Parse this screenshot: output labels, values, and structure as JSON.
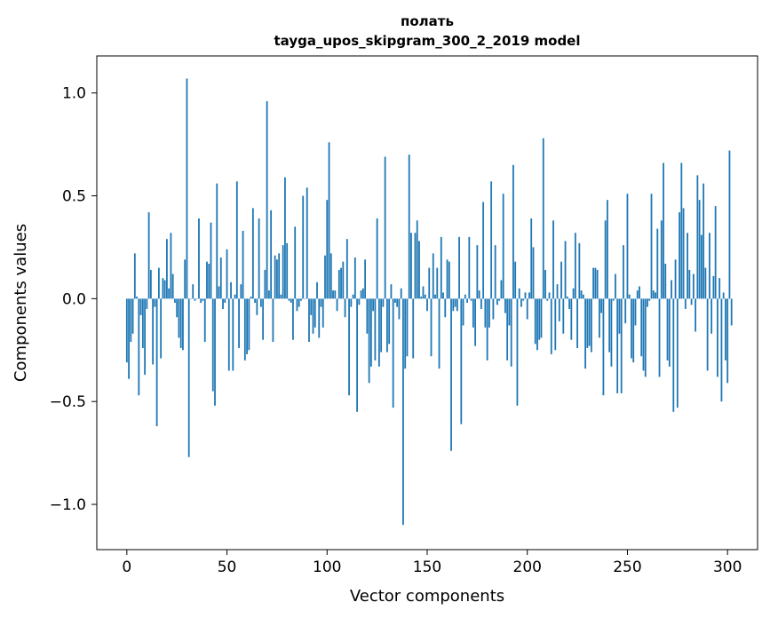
{
  "chart_data": {
    "type": "bar",
    "title_line1": "полать",
    "title_line2": "tayga_upos_skipgram_300_2_2019 model",
    "xlabel": "Vector components",
    "ylabel": "Components values",
    "xlim": [
      -15,
      315
    ],
    "ylim": [
      -1.22,
      1.18
    ],
    "x_ticks": [
      0,
      50,
      100,
      150,
      200,
      250,
      300
    ],
    "x_tick_labels": [
      "0",
      "50",
      "100",
      "150",
      "200",
      "250",
      "300"
    ],
    "y_ticks": [
      -1.0,
      -0.5,
      0.0,
      0.5,
      1.0
    ],
    "y_tick_labels": [
      "−1.0",
      "−0.5",
      "0.0",
      "0.5",
      "1.0"
    ],
    "bar_color": "#1f77b4",
    "series": [
      {
        "name": "полать",
        "values": [
          -0.31,
          -0.39,
          -0.21,
          -0.17,
          0.22,
          0.01,
          -0.47,
          -0.08,
          -0.24,
          -0.37,
          -0.05,
          0.42,
          0.14,
          -0.32,
          -0.04,
          -0.62,
          0.15,
          -0.29,
          0.1,
          0.09,
          0.29,
          0.05,
          0.32,
          0.12,
          -0.02,
          -0.09,
          -0.19,
          -0.24,
          -0.25,
          0.19,
          1.07,
          -0.77,
          0.0,
          0.07,
          -0.01,
          0.0,
          0.39,
          -0.02,
          -0.01,
          -0.21,
          0.18,
          0.17,
          0.37,
          -0.45,
          -0.52,
          0.56,
          0.06,
          0.2,
          -0.05,
          -0.02,
          0.24,
          -0.35,
          0.08,
          -0.35,
          0.02,
          0.57,
          -0.24,
          0.07,
          0.33,
          -0.3,
          -0.27,
          -0.25,
          0.01,
          0.44,
          -0.02,
          -0.08,
          0.39,
          -0.04,
          -0.2,
          0.14,
          0.96,
          0.04,
          0.43,
          -0.21,
          0.21,
          0.19,
          0.22,
          0.02,
          0.26,
          0.59,
          0.27,
          -0.01,
          -0.02,
          -0.2,
          0.35,
          -0.06,
          -0.04,
          -0.01,
          0.5,
          0.0,
          0.54,
          -0.21,
          -0.08,
          -0.17,
          -0.14,
          0.08,
          -0.19,
          -0.04,
          -0.14,
          0.21,
          0.48,
          0.76,
          0.22,
          0.04,
          0.04,
          -0.06,
          0.14,
          0.15,
          0.18,
          -0.09,
          0.29,
          -0.47,
          -0.04,
          0.02,
          0.2,
          -0.55,
          -0.03,
          0.04,
          0.05,
          0.19,
          -0.17,
          -0.41,
          -0.33,
          -0.06,
          -0.3,
          0.39,
          -0.33,
          -0.26,
          -0.04,
          0.69,
          -0.26,
          -0.22,
          0.07,
          -0.53,
          -0.02,
          -0.04,
          -0.1,
          0.05,
          -1.1,
          -0.34,
          -0.28,
          0.7,
          0.32,
          -0.29,
          0.32,
          0.38,
          0.28,
          0.01,
          0.06,
          0.02,
          -0.06,
          0.15,
          -0.28,
          0.22,
          0.02,
          0.15,
          -0.34,
          0.3,
          0.03,
          -0.09,
          0.19,
          0.18,
          -0.74,
          -0.06,
          -0.04,
          -0.06,
          0.3,
          -0.61,
          -0.13,
          0.02,
          -0.02,
          0.3,
          -0.01,
          -0.14,
          -0.23,
          0.26,
          0.04,
          -0.05,
          0.47,
          -0.14,
          -0.3,
          -0.14,
          0.57,
          -0.1,
          0.26,
          -0.03,
          -0.01,
          0.09,
          0.51,
          -0.07,
          -0.3,
          -0.13,
          -0.33,
          0.65,
          0.18,
          -0.52,
          0.05,
          -0.04,
          -0.01,
          0.03,
          -0.1,
          0.03,
          0.39,
          0.25,
          -0.22,
          -0.25,
          -0.2,
          -0.19,
          0.78,
          0.14,
          -0.01,
          0.03,
          -0.27,
          0.38,
          -0.25,
          0.07,
          -0.11,
          0.18,
          -0.17,
          0.28,
          0.01,
          -0.05,
          -0.2,
          0.05,
          0.32,
          -0.24,
          0.27,
          0.04,
          0.02,
          -0.34,
          -0.24,
          -0.23,
          -0.26,
          0.15,
          0.15,
          0.14,
          -0.19,
          -0.07,
          -0.47,
          0.38,
          0.48,
          -0.26,
          -0.33,
          -0.01,
          0.12,
          -0.46,
          -0.17,
          -0.46,
          0.26,
          -0.12,
          0.51,
          0.02,
          -0.29,
          -0.31,
          -0.13,
          0.04,
          0.06,
          -0.28,
          -0.35,
          -0.38,
          -0.04,
          -0.01,
          0.51,
          0.04,
          0.03,
          0.34,
          -0.38,
          0.38,
          0.66,
          0.17,
          -0.3,
          -0.33,
          0.09,
          -0.55,
          0.19,
          -0.53,
          0.42,
          0.66,
          0.44,
          -0.05,
          0.32,
          0.14,
          -0.03,
          0.12,
          -0.16,
          0.6,
          0.48,
          0.31,
          0.56,
          0.15,
          -0.35,
          0.32,
          -0.17,
          0.11,
          0.45,
          -0.38,
          0.1,
          -0.5,
          0.03,
          -0.3,
          -0.41,
          0.72,
          -0.13
        ]
      }
    ]
  }
}
